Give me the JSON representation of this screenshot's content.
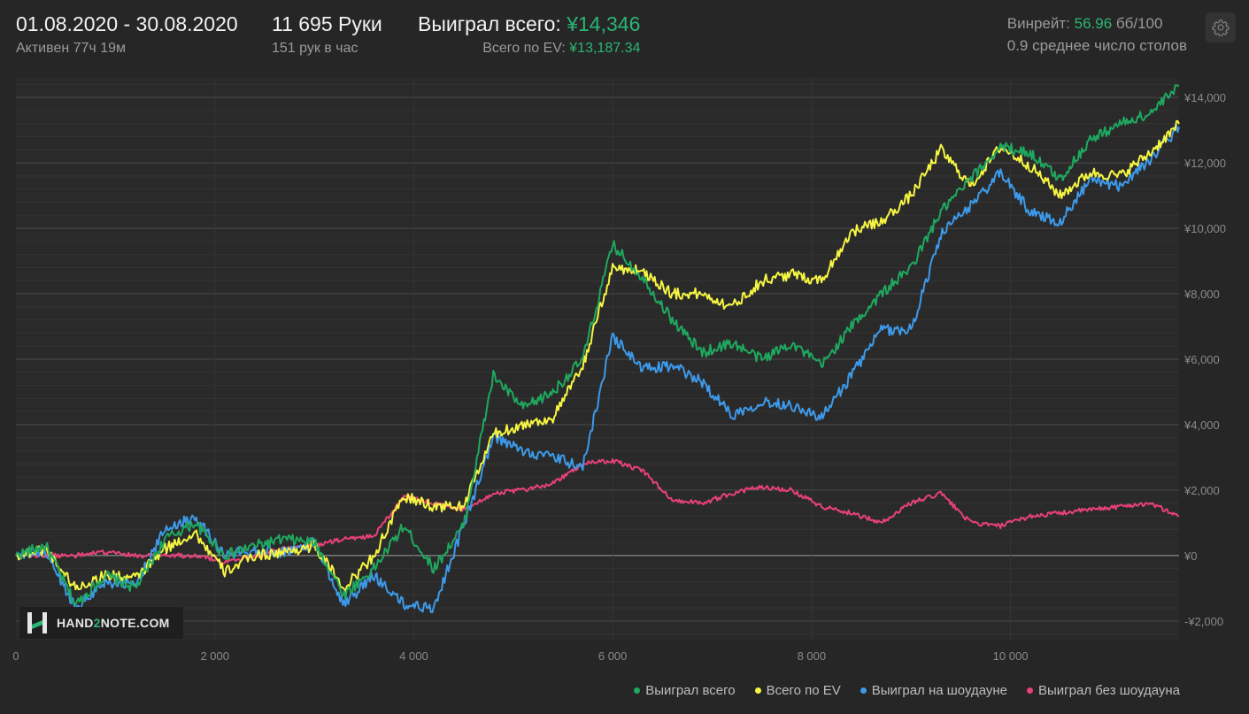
{
  "header": {
    "date_range": "01.08.2020 - 30.08.2020",
    "active_time": "Активен 77ч 19м",
    "hands_total": "11 695 Руки",
    "hands_per_hour": "151 рук в час",
    "won_total_label": "Выиграл всего:",
    "won_total_value": "¥14,346",
    "ev_total_label": "Всего по EV:",
    "ev_total_value": "¥13,187.34",
    "winrate_label": "Винрейт:",
    "winrate_value": "56.96",
    "winrate_unit": "бб/100",
    "avg_tables": "0.9 среднее число столов"
  },
  "logo": {
    "part1": "HAND",
    "part2": "2",
    "part3": "NOTE.COM"
  },
  "colors": {
    "background": "#262626",
    "won_total": "#1fa85f",
    "ev_total": "#f5f542",
    "won_showdown": "#3d9aea",
    "won_no_showdown": "#e8417a",
    "green_text": "#2bb673"
  },
  "chart_data": {
    "type": "line",
    "xlim": [
      0,
      11695
    ],
    "ylim": [
      -2600,
      14600
    ],
    "x_ticks": [
      0,
      2000,
      4000,
      6000,
      8000,
      10000
    ],
    "x_tick_labels": [
      "0",
      "2 000",
      "4 000",
      "6 000",
      "8 000",
      "10 000"
    ],
    "y_ticks": [
      -2000,
      0,
      2000,
      4000,
      6000,
      8000,
      10000,
      12000,
      14000
    ],
    "y_tick_labels": [
      "-¥2,000",
      "¥0",
      "¥2,000",
      "¥4,000",
      "¥6,000",
      "¥8,000",
      "¥10,000",
      "¥12,000",
      "¥14,000"
    ],
    "grid": true,
    "legend_position": "bottom-right",
    "x": [
      0,
      300,
      600,
      900,
      1200,
      1500,
      1800,
      2100,
      2400,
      2700,
      3000,
      3300,
      3600,
      3900,
      4200,
      4500,
      4800,
      5100,
      5400,
      5700,
      6000,
      6300,
      6600,
      6900,
      7200,
      7500,
      7800,
      8100,
      8400,
      8700,
      9000,
      9300,
      9600,
      9900,
      10200,
      10500,
      10800,
      11100,
      11400,
      11695
    ],
    "series": [
      {
        "name": "Выиграл всего",
        "color_key": "won_total",
        "values": [
          0,
          300,
          -1500,
          -600,
          -1000,
          500,
          1000,
          0,
          300,
          500,
          400,
          -1200,
          -400,
          900,
          -400,
          900,
          5500,
          4500,
          5000,
          6000,
          9500,
          8500,
          7200,
          6200,
          6500,
          6000,
          6500,
          5800,
          7000,
          8000,
          8800,
          10500,
          11500,
          12500,
          12300,
          11500,
          12700,
          13200,
          13500,
          14346
        ]
      },
      {
        "name": "Всего по EV",
        "color_key": "ev_total",
        "values": [
          0,
          200,
          -1000,
          -600,
          -700,
          200,
          700,
          -500,
          0,
          100,
          300,
          -1000,
          0,
          1800,
          1500,
          1500,
          3700,
          4000,
          4200,
          5800,
          8800,
          8700,
          8000,
          8000,
          7600,
          8400,
          8600,
          8400,
          9900,
          10200,
          11000,
          12400,
          11300,
          12500,
          11900,
          11000,
          11700,
          11600,
          12300,
          13187
        ]
      },
      {
        "name": "Выиграл на шоудауне",
        "color_key": "won_showdown",
        "values": [
          0,
          100,
          -1600,
          -800,
          -900,
          800,
          1200,
          0,
          200,
          100,
          400,
          -1500,
          -600,
          -1500,
          -1600,
          900,
          3600,
          3200,
          3000,
          2700,
          6700,
          5700,
          5800,
          5300,
          4300,
          4700,
          4600,
          4200,
          5500,
          6900,
          6900,
          9800,
          10700,
          11700,
          10500,
          10200,
          11500,
          11300,
          12100,
          13100
        ]
      },
      {
        "name": "Выиграл без шоудауна",
        "color_key": "won_no_showdown",
        "values": [
          0,
          0,
          0,
          100,
          0,
          0,
          0,
          -200,
          0,
          200,
          300,
          500,
          600,
          1800,
          1600,
          1400,
          1900,
          2000,
          2200,
          2800,
          2900,
          2600,
          1700,
          1600,
          1900,
          2100,
          2000,
          1500,
          1300,
          1000,
          1600,
          1900,
          1000,
          900,
          1200,
          1300,
          1400,
          1500,
          1600,
          1200
        ]
      }
    ]
  }
}
